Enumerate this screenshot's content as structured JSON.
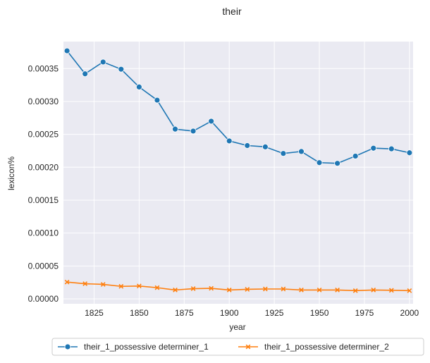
{
  "chart_data": {
    "type": "line",
    "title": "their",
    "xlabel": "year",
    "ylabel": "lexicon%",
    "xlim": [
      1808,
      2002
    ],
    "ylim": [
      -7.5e-06,
      0.000391
    ],
    "x_ticks": [
      1825,
      1850,
      1875,
      1900,
      1925,
      1950,
      1975,
      2000
    ],
    "x_tick_labels": [
      "1825",
      "1850",
      "1875",
      "1900",
      "1925",
      "1950",
      "1975",
      "2000"
    ],
    "y_ticks": [
      0.0,
      5e-05,
      0.0001,
      0.00015,
      0.0002,
      0.00025,
      0.0003,
      0.00035
    ],
    "y_tick_labels": [
      "0.00000",
      "0.00005",
      "0.00010",
      "0.00015",
      "0.00020",
      "0.00025",
      "0.00030",
      "0.00035"
    ],
    "grid": true,
    "legend_position": "bottom-center",
    "x": [
      1810,
      1820,
      1830,
      1840,
      1850,
      1860,
      1870,
      1880,
      1890,
      1900,
      1910,
      1920,
      1930,
      1940,
      1950,
      1960,
      1970,
      1980,
      1990,
      2000
    ],
    "series": [
      {
        "name": "their_1_possessive determiner_1",
        "color": "#1f77b4",
        "marker": "circle",
        "values": [
          0.000377,
          0.000342,
          0.00036,
          0.000349,
          0.000322,
          0.000302,
          0.000258,
          0.000255,
          0.00027,
          0.00024,
          0.000233,
          0.000231,
          0.000221,
          0.000224,
          0.000207,
          0.000206,
          0.000217,
          0.000229,
          0.000228,
          0.000222
        ]
      },
      {
        "name": "their_1_possessive determiner_2",
        "color": "#ff7f0e",
        "marker": "x",
        "values": [
          2.55e-05,
          2.3e-05,
          2.2e-05,
          1.9e-05,
          1.95e-05,
          1.7e-05,
          1.35e-05,
          1.55e-05,
          1.6e-05,
          1.35e-05,
          1.45e-05,
          1.5e-05,
          1.5e-05,
          1.35e-05,
          1.35e-05,
          1.35e-05,
          1.25e-05,
          1.35e-05,
          1.3e-05,
          1.25e-05
        ]
      }
    ]
  }
}
